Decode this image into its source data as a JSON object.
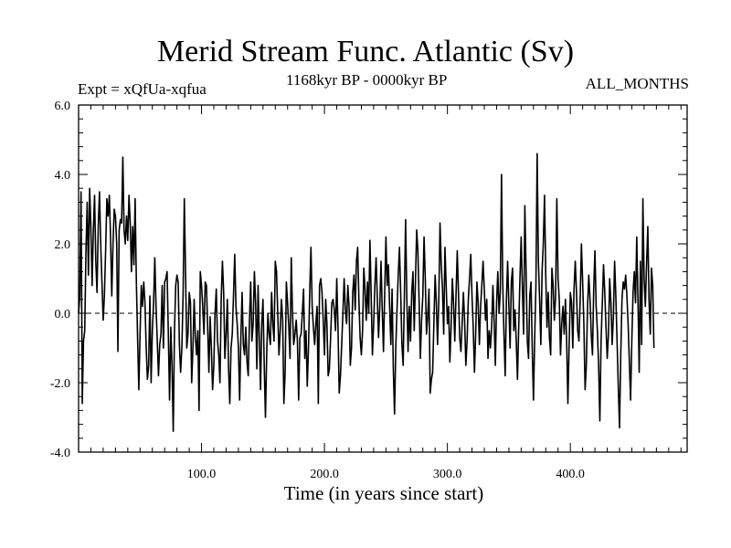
{
  "chart_data": {
    "type": "line",
    "title": "Merid Stream Func. Atlantic (Sv)",
    "subtitle": "1168kyr BP - 0000kyr BP",
    "experiment_label": "Expt = xQfUa-xqfua",
    "months_label": "ALL_MONTHS",
    "xlabel": "Time (in years since start)",
    "ylabel": "",
    "xlim": [
      0,
      495
    ],
    "ylim": [
      -4.0,
      6.0
    ],
    "xticks": [
      100,
      200,
      300,
      400
    ],
    "xtick_labels": [
      "100.0",
      "200.0",
      "300.0",
      "400.0"
    ],
    "yticks": [
      -4,
      -2,
      0,
      2,
      4,
      6
    ],
    "ytick_labels": [
      "-4.0",
      "-2.0",
      "0.0",
      "2.0",
      "4.0",
      "6.0"
    ],
    "reference_line": 0,
    "series": [
      {
        "name": "Merid Stream Func. Atlantic",
        "x_start": 0,
        "x_step": 1,
        "values": [
          0.0,
          0.5,
          3.5,
          -2.6,
          -0.8,
          -0.5,
          1.8,
          3.2,
          1.1,
          3.6,
          2.5,
          0.8,
          2.4,
          3.4,
          1.5,
          0.6,
          2.5,
          3.5,
          2.0,
          0.9,
          -0.2,
          0.5,
          1.8,
          3.3,
          2.8,
          3.4,
          2.2,
          0.5,
          2.0,
          3.0,
          2.8,
          2.0,
          -1.1,
          2.4,
          2.7,
          2.6,
          4.5,
          2.4,
          2.0,
          2.8,
          2.1,
          3.4,
          2.6,
          1.2,
          2.5,
          1.4,
          3.3,
          0.9,
          -0.7,
          -2.2,
          -0.6,
          0.8,
          0.2,
          0.9,
          0.3,
          -1.0,
          -1.9,
          -1.5,
          0.5,
          -2.0,
          -0.5,
          0.3,
          1.6,
          0.2,
          -0.8,
          -1.8,
          -0.9,
          -0.6,
          0.8,
          -1.0,
          0.9,
          1.0,
          1.2,
          -0.6,
          -2.5,
          -0.4,
          -1.5,
          -3.4,
          -0.5,
          0.8,
          1.1,
          0.9,
          -0.9,
          -1.7,
          -1.0,
          0.5,
          3.3,
          1.2,
          -1.0,
          -0.6,
          0.6,
          0.3,
          -2.0,
          -1.0,
          0.4,
          -0.7,
          -1.2,
          -0.5,
          -2.8,
          1.2,
          0.8,
          0.2,
          -0.6,
          0.9,
          0.8,
          -0.4,
          -1.7,
          -0.1,
          -1.0,
          -2.2,
          -1.5,
          0.0,
          0.7,
          -0.8,
          -1.2,
          -2.0,
          0.4,
          1.5,
          0.6,
          -1.3,
          -0.6,
          0.4,
          -1.6,
          -2.6,
          -1.0,
          -0.6,
          0.5,
          1.7,
          0.2,
          -0.3,
          -1.0,
          -2.5,
          -0.7,
          0.6,
          -0.9,
          -1.2,
          -0.4,
          -1.4,
          -1.8,
          -0.2,
          0.9,
          -0.8,
          -0.3,
          1.2,
          0.3,
          -1.6,
          0.8,
          -0.7,
          -2.2,
          -0.3,
          0.4,
          -1.5,
          -3.0,
          -1.2,
          0.0,
          -0.6,
          -0.9,
          0.6,
          -0.3,
          -0.8,
          1.5,
          1.2,
          0.0,
          -1.2,
          -0.5,
          0.4,
          -0.2,
          -2.6,
          -1.7,
          0.9,
          0.3,
          -0.4,
          -1.3,
          1.6,
          0.0,
          -0.9,
          -0.6,
          -0.2,
          -0.8,
          -2.5,
          -0.7,
          -0.6,
          0.0,
          0.7,
          -1.3,
          -0.5,
          -2.1,
          -1.0,
          0.6,
          1.9,
          0.2,
          -0.4,
          -0.9,
          -0.3,
          0.2,
          -2.6,
          0.8,
          1.0,
          0.6,
          -0.2,
          -1.2,
          0.4,
          -0.3,
          -1.8,
          -1.6,
          -0.7,
          0.3,
          0.4,
          0.1,
          -0.5,
          1.0,
          -0.4,
          -2.3,
          -1.8,
          -0.9,
          0.0,
          1.0,
          0.1,
          -0.3,
          0.8,
          0.2,
          -1.5,
          -1.0,
          0.6,
          1.1,
          0.1,
          1.5,
          1.9,
          0.4,
          -0.7,
          -1.2,
          -0.5,
          1.3,
          0.7,
          -0.2,
          0.9,
          0.0,
          2.1,
          0.5,
          -1.2,
          -0.3,
          0.8,
          1.6,
          0.4,
          -0.7,
          0.2,
          1.5,
          0.1,
          -1.1,
          0.6,
          2.2,
          0.8,
          1.4,
          0.2,
          -0.9,
          0.7,
          -1.6,
          -2.9,
          -1.0,
          0.1,
          1.1,
          1.9,
          0.6,
          -0.9,
          -1.5,
          0.5,
          2.7,
          0.4,
          -1.1,
          0.2,
          -0.8,
          0.6,
          1.2,
          -0.5,
          0.9,
          2.4,
          1.8,
          0.3,
          -1.3,
          -0.2,
          0.5,
          2.2,
          1.0,
          -0.6,
          -0.1,
          0.7,
          -2.3,
          -1.9,
          -1.7,
          -0.3,
          1.1,
          0.3,
          -0.9,
          0.4,
          2.6,
          1.4,
          0.7,
          -0.6,
          1.9,
          0.8,
          -0.3,
          0.2,
          -1.4,
          -0.4,
          1.0,
          0.3,
          -0.8,
          0.5,
          1.8,
          0.6,
          -0.7,
          -1.1,
          -0.3,
          0.6,
          -0.2,
          -1.5,
          -0.8,
          0.4,
          1.0,
          1.7,
          0.5,
          -0.4,
          -1.7,
          -0.6,
          0.9,
          0.3,
          -0.9,
          0.2,
          0.8,
          1.5,
          0.7,
          -0.2,
          0.4,
          -1.3,
          -0.5,
          -1.0,
          -0.4,
          0.8,
          -0.2,
          -1.5,
          0.3,
          1.2,
          0.0,
          0.6,
          4.0,
          0.9,
          -0.6,
          -1.8,
          0.4,
          1.5,
          0.2,
          -1.0,
          0.9,
          1.3,
          -0.5,
          0.1,
          -0.8,
          -1.9,
          -0.4,
          1.0,
          2.2,
          0.7,
          -0.6,
          3.1,
          1.2,
          -0.8,
          -1.3,
          0.5,
          0.9,
          -1.0,
          -2.5,
          -0.7,
          0.8,
          4.6,
          1.5,
          0.4,
          -0.9,
          1.2,
          2.0,
          3.4,
          1.1,
          -0.4,
          0.6,
          -0.7,
          -1.2,
          1.3,
          0.8,
          -0.2,
          0.5,
          3.3,
          1.0,
          0.4,
          -1.2,
          -0.3,
          0.2,
          -0.6,
          0.4,
          -0.8,
          -2.6,
          -0.9,
          0.6,
          0.3,
          -1.0,
          0.7,
          1.5,
          0.6,
          -0.5,
          -0.8,
          0.4,
          2.0,
          0.9,
          -0.3,
          -2.2,
          -1.5,
          0.2,
          1.1,
          0.4,
          -0.6,
          -1.2,
          0.7,
          1.8,
          0.2,
          -0.5,
          -1.5,
          -3.1,
          -0.8,
          0.3,
          1.4,
          0.6,
          -0.4,
          -1.3,
          -0.6,
          1.0,
          0.3,
          -0.9,
          -0.1,
          1.5,
          0.5,
          -0.8,
          -2.1,
          -3.3,
          -1.2,
          0.4,
          0.9,
          0.7,
          1.1,
          0.5,
          -0.3,
          -1.4,
          -2.5,
          -0.8,
          0.6,
          1.2,
          0.3,
          2.2,
          0.4,
          -1.7,
          1.5,
          -0.9,
          3.3,
          1.0,
          0.2,
          1.4,
          2.5,
          0.4,
          -0.6,
          1.3,
          0.8,
          -1.0
        ]
      }
    ]
  }
}
